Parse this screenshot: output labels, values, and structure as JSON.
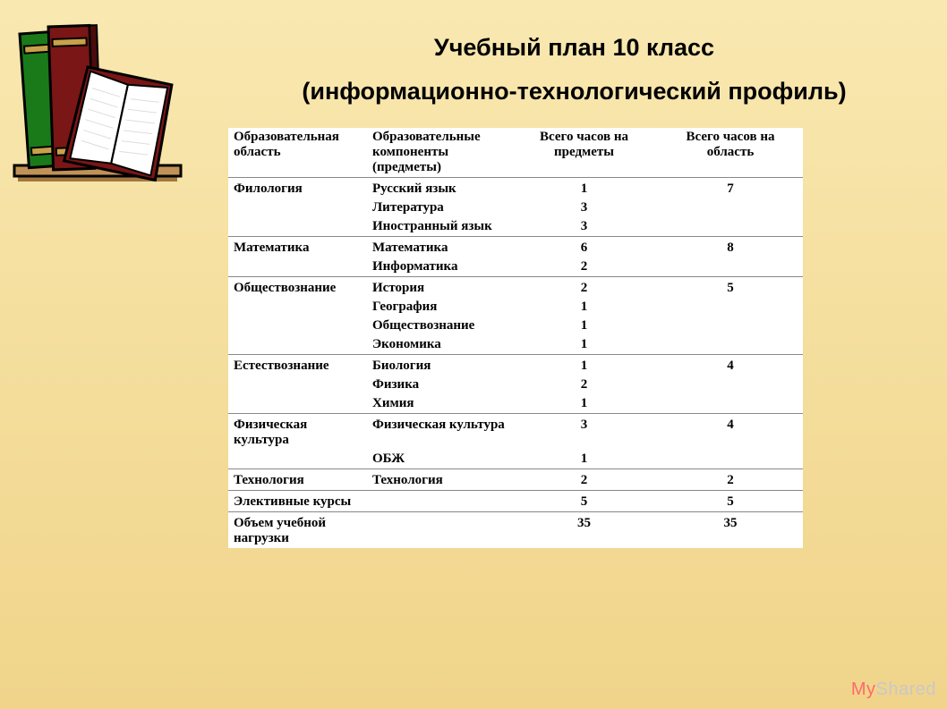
{
  "title_line1": "Учебный план 10 класс",
  "title_line2": "(информационно-технологический профиль)",
  "books": {
    "shelf_color": "#c19256",
    "shadow_color": "#a37840",
    "book_green": "#1a7a1a",
    "book_green_dark": "#0e4d0e",
    "book_green_band": "#c9a14a",
    "book_maroon": "#7a1616",
    "book_maroon_dark": "#4a0c0c",
    "book_maroon_band": "#c9a14a",
    "page_color": "#ffffff",
    "page_lines": "#dddddd",
    "open_cover": "#7a1616"
  },
  "headers": [
    "Образовательная область",
    "Образовательные компоненты (предметы)",
    "Всего часов на предметы",
    "Всего часов на область"
  ],
  "rows": [
    {
      "sep": true,
      "area": "Филология",
      "subject": "Русский язык",
      "hours": "1",
      "total": "7"
    },
    {
      "sep": false,
      "area": "",
      "subject": "Литература",
      "hours": "3",
      "total": ""
    },
    {
      "sep": false,
      "area": "",
      "subject": "Иностранный язык",
      "hours": "3",
      "total": ""
    },
    {
      "sep": true,
      "area": "Математика",
      "subject": "Математика",
      "hours": "6",
      "total": "8"
    },
    {
      "sep": false,
      "area": "",
      "subject": "Информатика",
      "hours": "2",
      "total": ""
    },
    {
      "sep": true,
      "area": "Обществознание",
      "subject": "История",
      "hours": "2",
      "total": "5"
    },
    {
      "sep": false,
      "area": "",
      "subject": "География",
      "hours": "1",
      "total": ""
    },
    {
      "sep": false,
      "area": "",
      "subject": "Обществознание",
      "hours": "1",
      "total": ""
    },
    {
      "sep": false,
      "area": "",
      "subject": "Экономика",
      "hours": "1",
      "total": ""
    },
    {
      "sep": true,
      "area": "Естествознание",
      "subject": "Биология",
      "hours": "1",
      "total": "4"
    },
    {
      "sep": false,
      "area": "",
      "subject": "Физика",
      "hours": "2",
      "total": ""
    },
    {
      "sep": false,
      "area": "",
      "subject": "Химия",
      "hours": "1",
      "total": ""
    },
    {
      "sep": true,
      "area": "Физическая культура",
      "subject": "Физическая культура",
      "hours": "3",
      "total": "4"
    },
    {
      "sep": false,
      "area": "",
      "subject": "ОБЖ",
      "hours": "1",
      "total": ""
    },
    {
      "sep": true,
      "area": "Технология",
      "subject": "Технология",
      "hours": "2",
      "total": "2"
    },
    {
      "sep": true,
      "area": "Элективные курсы",
      "subject": "",
      "hours": "5",
      "total": "5"
    },
    {
      "sep": true,
      "area": "Объем учебной нагрузки",
      "subject": "",
      "hours": "35",
      "total": "35"
    }
  ],
  "watermark_prefix": "My",
  "watermark_rest": "Shared"
}
